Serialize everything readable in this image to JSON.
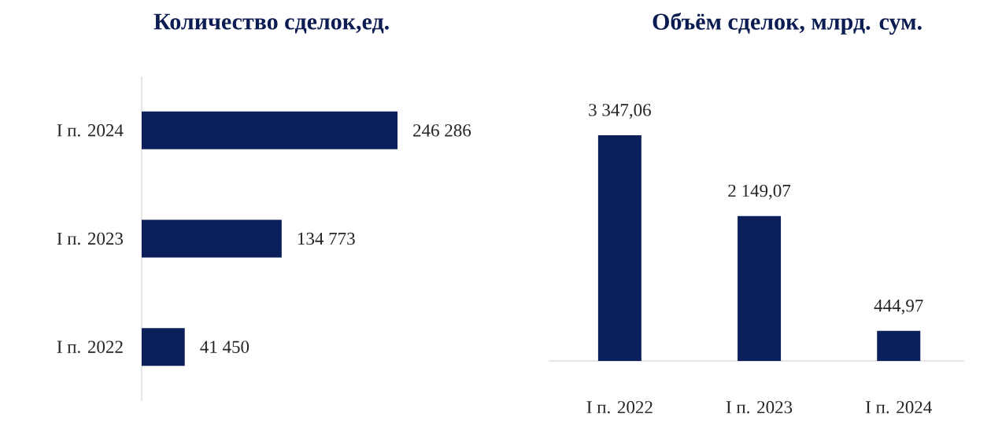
{
  "chart_data": [
    {
      "type": "bar",
      "orientation": "horizontal",
      "title": "Количество сделок,ед.",
      "categories": [
        "I п. 2024",
        "I п. 2023",
        "I п. 2022"
      ],
      "values": [
        246286,
        134773,
        41450
      ],
      "value_labels": [
        "246 286",
        "134 773",
        "41 450"
      ],
      "color": "#0b1f5b"
    },
    {
      "type": "bar",
      "title": "Объём сделок, млрд. сум.",
      "categories": [
        "I п. 2022",
        "I п. 2023",
        "I п. 2024"
      ],
      "values": [
        3347.06,
        2149.07,
        444.97
      ],
      "value_labels": [
        "3 347,06",
        "2 149,07",
        "444,97"
      ],
      "color": "#0b1f5b"
    }
  ]
}
